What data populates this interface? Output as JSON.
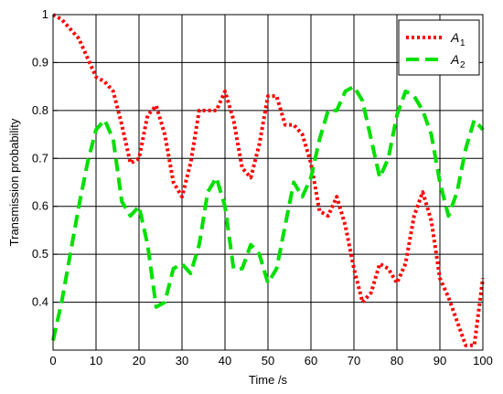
{
  "chart_data": {
    "type": "line",
    "title": "",
    "xlabel": "Time /s",
    "ylabel": "Transmission probability",
    "xlim": [
      0,
      100
    ],
    "ylim": [
      0.3,
      1.0
    ],
    "xticks": [
      0,
      10,
      20,
      30,
      40,
      50,
      60,
      70,
      80,
      90,
      100
    ],
    "xtick_labels": [
      "0",
      "10",
      "20",
      "30",
      "40",
      "50",
      "60",
      "70",
      "80",
      "90",
      "100"
    ],
    "yticks": [
      0.3,
      0.4,
      0.5,
      0.6,
      0.7,
      0.8,
      0.9,
      1.0
    ],
    "ytick_labels": [
      "",
      "0.4",
      "0.5",
      "0.6",
      "0.7",
      "0.8",
      "0.9",
      "1"
    ],
    "grid": true,
    "legend_position": "top-right",
    "series": [
      {
        "name": "A",
        "subscript": "1",
        "color": "#ff0000",
        "style": "dotted",
        "x": [
          0,
          2,
          4,
          6,
          8,
          10,
          12,
          14,
          16,
          18,
          20,
          22,
          24,
          26,
          28,
          30,
          32,
          34,
          36,
          38,
          40,
          42,
          44,
          46,
          48,
          50,
          52,
          54,
          56,
          58,
          60,
          62,
          64,
          66,
          68,
          70,
          72,
          74,
          76,
          78,
          80,
          82,
          84,
          86,
          88,
          90,
          92,
          94,
          96,
          98,
          100
        ],
        "y": [
          1.0,
          0.99,
          0.97,
          0.95,
          0.91,
          0.87,
          0.86,
          0.84,
          0.77,
          0.69,
          0.7,
          0.79,
          0.81,
          0.75,
          0.65,
          0.62,
          0.69,
          0.8,
          0.8,
          0.8,
          0.84,
          0.78,
          0.68,
          0.66,
          0.73,
          0.83,
          0.83,
          0.77,
          0.77,
          0.75,
          0.69,
          0.59,
          0.58,
          0.62,
          0.56,
          0.47,
          0.4,
          0.42,
          0.48,
          0.47,
          0.44,
          0.48,
          0.58,
          0.63,
          0.57,
          0.45,
          0.41,
          0.36,
          0.31,
          0.31,
          0.45
        ]
      },
      {
        "name": "A",
        "subscript": "2",
        "color": "#00e000",
        "style": "dashed",
        "x": [
          0,
          2,
          4,
          6,
          8,
          10,
          12,
          14,
          16,
          18,
          20,
          22,
          24,
          26,
          28,
          30,
          32,
          34,
          36,
          38,
          40,
          42,
          44,
          46,
          48,
          50,
          52,
          54,
          56,
          58,
          60,
          62,
          64,
          66,
          68,
          70,
          72,
          74,
          76,
          78,
          80,
          82,
          84,
          86,
          88,
          90,
          92,
          94,
          96,
          98,
          100
        ],
        "y": [
          0.32,
          0.4,
          0.5,
          0.6,
          0.69,
          0.76,
          0.78,
          0.74,
          0.61,
          0.58,
          0.6,
          0.52,
          0.39,
          0.4,
          0.47,
          0.48,
          0.46,
          0.52,
          0.63,
          0.66,
          0.6,
          0.47,
          0.47,
          0.52,
          0.5,
          0.44,
          0.47,
          0.56,
          0.65,
          0.62,
          0.66,
          0.74,
          0.8,
          0.8,
          0.84,
          0.85,
          0.82,
          0.74,
          0.66,
          0.7,
          0.79,
          0.84,
          0.83,
          0.8,
          0.75,
          0.65,
          0.58,
          0.63,
          0.72,
          0.78,
          0.76
        ]
      }
    ]
  }
}
